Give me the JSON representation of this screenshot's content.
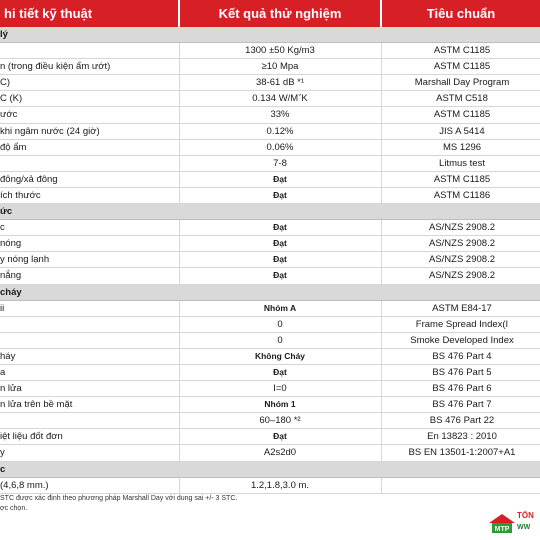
{
  "header": {
    "col1": "hi tiết kỹ thuật",
    "col2": "Kết quả thử nghiệm",
    "col3": "Tiêu chuẩn"
  },
  "rows": [
    {
      "type": "section",
      "c1": "lý",
      "c2": "",
      "c3": ""
    },
    {
      "type": "data",
      "c1": "",
      "c2": "1300 ±50 Kg/m3",
      "c3": "ASTM C1185",
      "bold": false
    },
    {
      "type": "data",
      "c1": "n (trong điều kiện ẩm ướt)",
      "c2": "≥10 Mpa",
      "c3": "ASTM C1185",
      "bold": false
    },
    {
      "type": "data",
      "c1": "C)",
      "c2": "38-61 dB *¹",
      "c3": "Marshall Day Program",
      "bold": false
    },
    {
      "type": "data",
      "c1": "C (K)",
      "c2": "0.134 W/MˇK",
      "c3": "ASTM C518",
      "bold": false
    },
    {
      "type": "data",
      "c1": "ước",
      "c2": "33%",
      "c3": "ASTM C1185",
      "bold": false
    },
    {
      "type": "data",
      "c1": "khi ngâm nước (24 giờ)",
      "c2": "0.12%",
      "c3": "JIS A 5414",
      "bold": false
    },
    {
      "type": "data",
      "c1": "độ ẩm",
      "c2": "0.06%",
      "c3": "MS 1296",
      "bold": false
    },
    {
      "type": "data",
      "c1": "",
      "c2": "7-8",
      "c3": "Litmus test",
      "bold": false
    },
    {
      "type": "data",
      "c1": "đông/xả đông",
      "c2": "Đạt",
      "c3": "ASTM C1185",
      "bold": true
    },
    {
      "type": "data",
      "c1": "ích thước",
      "c2": "Đạt",
      "c3": "ASTM C1186",
      "bold": true
    },
    {
      "type": "section",
      "c1": "ức",
      "c2": "",
      "c3": ""
    },
    {
      "type": "data",
      "c1": "c",
      "c2": "Đạt",
      "c3": "AS/NZS 2908.2",
      "bold": true
    },
    {
      "type": "data",
      "c1": "nóng",
      "c2": "Đạt",
      "c3": "AS/NZS 2908.2",
      "bold": true
    },
    {
      "type": "data",
      "c1": "y nóng lạnh",
      "c2": "Đạt",
      "c3": "AS/NZS 2908.2",
      "bold": true
    },
    {
      "type": "data",
      "c1": "nắng",
      "c2": "Đạt",
      "c3": "AS/NZS 2908.2",
      "bold": true
    },
    {
      "type": "section",
      "c1": "cháy",
      "c2": "",
      "c3": ""
    },
    {
      "type": "data",
      "c1": "ii",
      "c2": "Nhóm A",
      "c3": "ASTM E84-17",
      "bold": true
    },
    {
      "type": "data",
      "c1": "",
      "c2": "0",
      "c3": "Frame Spread Index(I",
      "bold": false
    },
    {
      "type": "data",
      "c1": "",
      "c2": "0",
      "c3": "Smoke Developed Index",
      "bold": false
    },
    {
      "type": "data",
      "c1": "háy",
      "c2": "Không Cháy",
      "c3": "BS 476 Part 4",
      "bold": true
    },
    {
      "type": "data",
      "c1": "a",
      "c2": "Đạt",
      "c3": "BS 476 Part 5",
      "bold": true
    },
    {
      "type": "data",
      "c1": "n lửa",
      "c2": "I=0",
      "c3": "BS 476 Part 6",
      "bold": false
    },
    {
      "type": "data",
      "c1": "n lửa trên bề mặt",
      "c2": "Nhóm 1",
      "c3": "BS 476 Part 7",
      "bold": true
    },
    {
      "type": "data",
      "c1": "",
      "c2": "60–180 *²",
      "c3": "BS 476 Part 22",
      "bold": false
    },
    {
      "type": "data",
      "c1": "iệt liệu đốt đơn",
      "c2": "Đạt",
      "c3": "En 13823 : 2010",
      "bold": true
    },
    {
      "type": "data",
      "c1": "y",
      "c2": "A2s2d0",
      "c3": "BS EN 13501-1:2007+A1",
      "bold": false
    },
    {
      "type": "section",
      "c1": "c",
      "c2": "",
      "c3": ""
    },
    {
      "type": "data",
      "c1": "(4,6,8 mm.)",
      "c2": "1.2,1.8,3.0 m.",
      "c3": "",
      "bold": false
    }
  ],
  "footnotes": [
    "STC được xác định theo phương pháp Marshall Day với dung sai +/- 3 STC.",
    "ợc chọn."
  ],
  "logo": {
    "brand": "TỔN",
    "web": "WW"
  },
  "colors": {
    "header_bg": "#d71f26",
    "section_bg": "#d9d9d9"
  }
}
